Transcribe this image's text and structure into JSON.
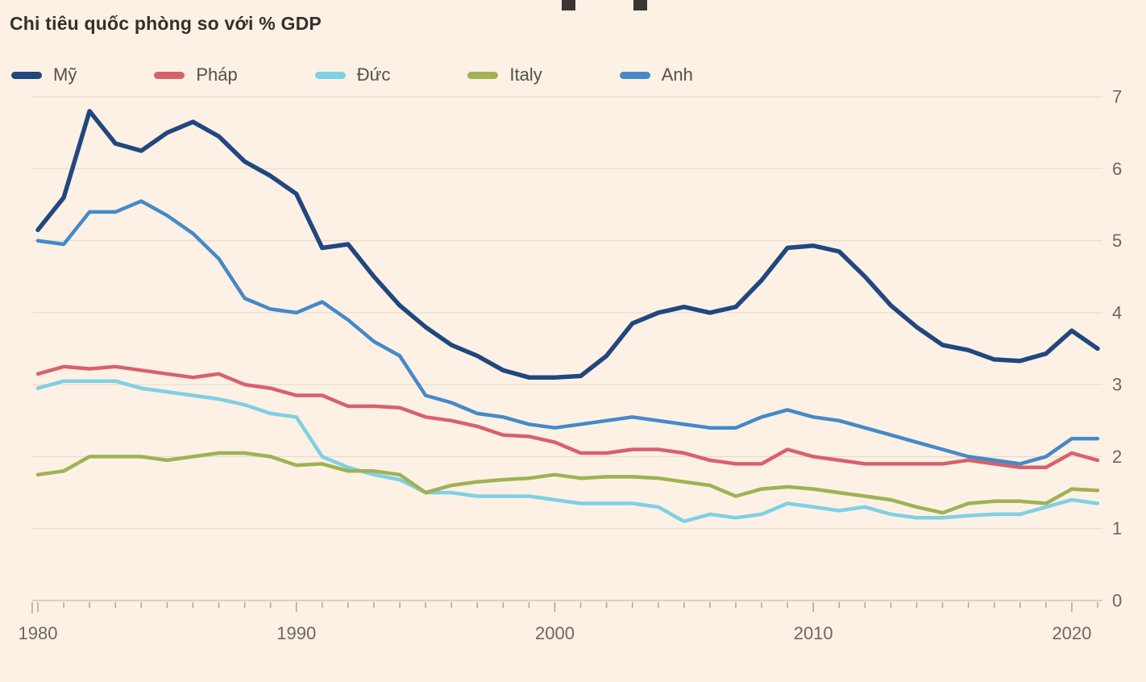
{
  "page": {
    "background": "#FCF1E4",
    "title_color": "#33302C",
    "axis_label_color": "#6E6760",
    "grid_color": "#E8DDCD",
    "zero_line_color": "#C8BCAC",
    "tick_color": "#B0A598",
    "legend_text_color": "#54504B"
  },
  "header": {
    "title": "Chi tiêu quốc phòng so với % GDP"
  },
  "chart_data": {
    "type": "line",
    "title": "Chi tiêu quốc phòng so với % GDP",
    "xlabel": "",
    "ylabel": "",
    "x_range": [
      1980,
      2021
    ],
    "ylim": [
      0,
      7
    ],
    "grid": true,
    "legend_position": "top",
    "yticks": [
      0,
      1,
      2,
      3,
      4,
      5,
      6,
      7
    ],
    "xticks_labeled": [
      1980,
      1990,
      2000,
      2010,
      2020
    ],
    "x": [
      1980,
      1981,
      1982,
      1983,
      1984,
      1985,
      1986,
      1987,
      1988,
      1989,
      1990,
      1991,
      1992,
      1993,
      1994,
      1995,
      1996,
      1997,
      1998,
      1999,
      2000,
      2001,
      2002,
      2003,
      2004,
      2005,
      2006,
      2007,
      2008,
      2009,
      2010,
      2011,
      2012,
      2013,
      2014,
      2015,
      2016,
      2017,
      2018,
      2019,
      2020,
      2021
    ],
    "series": [
      {
        "name": "Mỹ",
        "color": "#21477F",
        "width": 5.5,
        "z": 5,
        "values": [
          5.15,
          5.6,
          6.8,
          6.35,
          6.25,
          6.5,
          6.65,
          6.45,
          6.1,
          5.9,
          5.65,
          4.9,
          4.95,
          4.5,
          4.1,
          3.8,
          3.55,
          3.4,
          3.2,
          3.1,
          3.1,
          3.12,
          3.4,
          3.85,
          4.0,
          4.08,
          4.0,
          4.08,
          4.45,
          4.9,
          4.93,
          4.85,
          4.5,
          4.1,
          3.8,
          3.55,
          3.48,
          3.35,
          3.33,
          3.43,
          3.75,
          3.5
        ]
      },
      {
        "name": "Pháp",
        "color": "#D9606E",
        "width": 4.5,
        "z": 3,
        "values": [
          3.15,
          3.25,
          3.22,
          3.25,
          3.2,
          3.15,
          3.1,
          3.15,
          3.0,
          2.95,
          2.85,
          2.85,
          2.7,
          2.7,
          2.68,
          2.55,
          2.5,
          2.42,
          2.3,
          2.28,
          2.2,
          2.05,
          2.05,
          2.1,
          2.1,
          2.05,
          1.95,
          1.9,
          1.9,
          2.1,
          2.0,
          1.95,
          1.9,
          1.9,
          1.9,
          1.9,
          1.95,
          1.9,
          1.85,
          1.85,
          2.05,
          1.95
        ]
      },
      {
        "name": "Đức",
        "color": "#7FD0E4",
        "width": 4.5,
        "z": 1,
        "values": [
          2.95,
          3.05,
          3.05,
          3.05,
          2.95,
          2.9,
          2.85,
          2.8,
          2.72,
          2.6,
          2.55,
          2.0,
          1.85,
          1.75,
          1.68,
          1.5,
          1.5,
          1.45,
          1.45,
          1.45,
          1.4,
          1.35,
          1.35,
          1.35,
          1.3,
          1.1,
          1.2,
          1.15,
          1.2,
          1.35,
          1.3,
          1.25,
          1.3,
          1.2,
          1.15,
          1.15,
          1.18,
          1.2,
          1.2,
          1.3,
          1.4,
          1.35
        ]
      },
      {
        "name": "Italy",
        "color": "#9FB254",
        "width": 4.5,
        "z": 2,
        "values": [
          1.75,
          1.8,
          2.0,
          2.0,
          2.0,
          1.95,
          2.0,
          2.05,
          2.05,
          2.0,
          1.88,
          1.9,
          1.8,
          1.8,
          1.75,
          1.5,
          1.6,
          1.65,
          1.68,
          1.7,
          1.75,
          1.7,
          1.72,
          1.72,
          1.7,
          1.65,
          1.6,
          1.45,
          1.55,
          1.58,
          1.55,
          1.5,
          1.45,
          1.4,
          1.3,
          1.22,
          1.35,
          1.38,
          1.38,
          1.35,
          1.55,
          1.53
        ]
      },
      {
        "name": "Anh",
        "color": "#4589C8",
        "width": 4.5,
        "z": 4,
        "values": [
          5.0,
          4.95,
          5.4,
          5.4,
          5.55,
          5.35,
          5.1,
          4.75,
          4.2,
          4.05,
          4.0,
          4.15,
          3.9,
          3.6,
          3.4,
          2.85,
          2.75,
          2.6,
          2.55,
          2.45,
          2.4,
          2.45,
          2.5,
          2.55,
          2.5,
          2.45,
          2.4,
          2.4,
          2.55,
          2.65,
          2.55,
          2.5,
          2.4,
          2.3,
          2.2,
          2.1,
          2.0,
          1.95,
          1.9,
          2.0,
          2.25,
          2.25
        ]
      }
    ]
  }
}
